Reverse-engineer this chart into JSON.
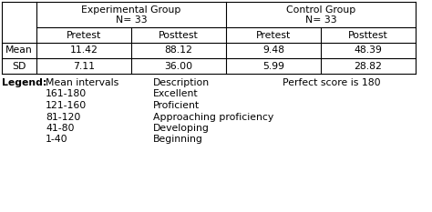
{
  "table_data": {
    "col_headers_l2": [
      "Pretest",
      "Posttest",
      "Pretest",
      "Posttest"
    ],
    "rows": [
      [
        "11.42",
        "88.12",
        "9.48",
        "48.39"
      ],
      [
        "7.11",
        "36.00",
        "5.99",
        "28.82"
      ]
    ],
    "row_labels": [
      "Mean",
      "SD"
    ]
  },
  "legend": {
    "label": "Legend:",
    "col1_header": "Mean intervals",
    "col2_header": "Description",
    "col3_header": "Perfect score is 180",
    "intervals": [
      "161-180",
      "121-160",
      "81-120",
      "41-80",
      "1-40"
    ],
    "descriptions": [
      "Excellent",
      "Proficient",
      "Approaching proficiency",
      "Developing",
      "Beginning"
    ]
  },
  "bg_color": "#ffffff",
  "text_color": "#000000",
  "fontsize": 7.8,
  "fontfamily": "DejaVu Sans",
  "exp_group": "Experimental Group",
  "exp_n": "N= 33",
  "ctrl_group": "Control Group",
  "ctrl_n": "N= 33"
}
